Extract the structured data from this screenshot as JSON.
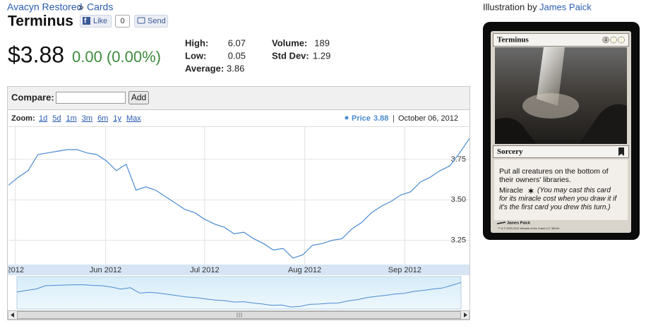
{
  "breadcrumb": {
    "set": "Avacyn Restored",
    "sep": "»",
    "section": "Cards"
  },
  "header": {
    "title": "Terminus",
    "like": "Like",
    "like_count": 0,
    "send": "Send"
  },
  "price": {
    "current": "$3.88",
    "change": "0.00 (0.00%)"
  },
  "stats": {
    "high_label": "High:",
    "high": 6.07,
    "low_label": "Low:",
    "low": 0.05,
    "average_label": "Average:",
    "average": 3.86,
    "volume_label": "Volume:",
    "volume": 189,
    "stddev_label": "Std Dev:",
    "stddev": 1.29
  },
  "compare": {
    "label": "Compare:",
    "button": "Add"
  },
  "chart_data": {
    "type": "line",
    "zoom_label": "Zoom:",
    "zoom_options": [
      "1d",
      "5d",
      "1m",
      "3m",
      "6m",
      "1y",
      "Max"
    ],
    "date_label": "October 06, 2012",
    "series": [
      {
        "name": "Price",
        "color": "#4a8bd0",
        "values": [
          3.59,
          3.64,
          3.68,
          3.78,
          3.79,
          3.8,
          3.81,
          3.81,
          3.79,
          3.78,
          3.74,
          3.68,
          3.72,
          3.56,
          3.58,
          3.56,
          3.52,
          3.48,
          3.44,
          3.42,
          3.38,
          3.35,
          3.33,
          3.29,
          3.3,
          3.26,
          3.23,
          3.19,
          3.2,
          3.14,
          3.16,
          3.22,
          3.23,
          3.25,
          3.26,
          3.32,
          3.36,
          3.42,
          3.46,
          3.49,
          3.53,
          3.55,
          3.61,
          3.64,
          3.68,
          3.71,
          3.79,
          3.88
        ]
      }
    ],
    "xlim": [
      0,
      47
    ],
    "xticks": [
      {
        "value": 0.7,
        "label": "2012"
      },
      {
        "value": 9.9,
        "label": "Jun 2012"
      },
      {
        "value": 20,
        "label": "Jul 2012"
      },
      {
        "value": 30.2,
        "label": "Aug 2012"
      },
      {
        "value": 40.4,
        "label": "Sep 2012"
      }
    ],
    "ylim": [
      3.1,
      3.95
    ],
    "yticks": [
      3.25,
      {
        "value": 3.5,
        "label": "3.50"
      },
      3.75
    ],
    "grid": true
  },
  "illustration": {
    "label": "Illustration by",
    "artist": "James Paick"
  },
  "card": {
    "name": "Terminus",
    "mana": "4",
    "type_line": "Sorcery",
    "rules": [
      "Put all creatures on the bottom of",
      "their owners' libraries."
    ],
    "keyword": "Miracle",
    "reminder": [
      "(You may cast this card",
      "for its miracle cost when you draw it if",
      "it's the first card you drew this turn.)"
    ],
    "artist": "James Paick",
    "copyright": "™ & © 1993-2012 Wizards of the Coast LLC 36/244"
  }
}
